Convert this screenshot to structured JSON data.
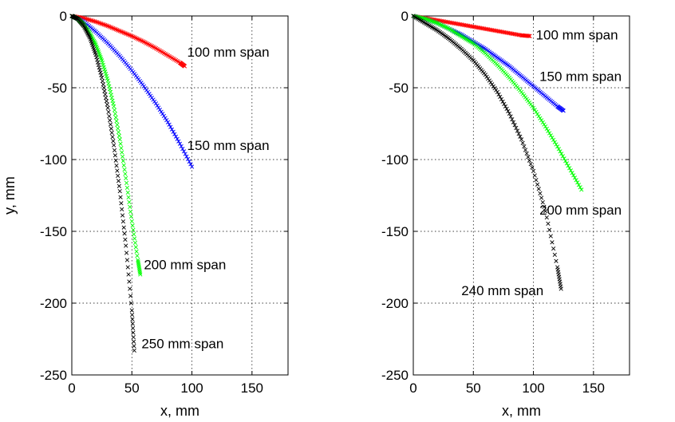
{
  "chart_data": [
    {
      "type": "scatter",
      "title": "",
      "xlabel": "x, mm",
      "ylabel": "y, mm",
      "xlim": [
        0,
        180
      ],
      "ylim": [
        -250,
        0
      ],
      "xticks": [
        0,
        50,
        100,
        150
      ],
      "yticks": [
        0,
        -50,
        -100,
        -150,
        -200,
        -250
      ],
      "grid": true,
      "marker": "x",
      "series": [
        {
          "name": "100 mm span",
          "color": "#ff0000",
          "x": [
            0,
            10,
            20,
            30,
            40,
            50,
            60,
            70,
            80,
            90,
            94
          ],
          "y": [
            0,
            -1.5,
            -4,
            -7,
            -10.5,
            -14,
            -18,
            -22.5,
            -27.5,
            -32.5,
            -35
          ]
        },
        {
          "name": "150 mm span",
          "color": "#0000ff",
          "x": [
            0,
            10,
            20,
            30,
            40,
            50,
            60,
            70,
            80,
            90,
            100
          ],
          "y": [
            0,
            -4,
            -11,
            -19,
            -28,
            -38,
            -49,
            -61,
            -74,
            -89,
            -105
          ]
        },
        {
          "name": "200 mm span",
          "color": "#00ff00",
          "x": [
            0,
            5,
            10,
            15,
            20,
            25,
            30,
            35,
            40,
            45,
            50,
            55,
            57
          ],
          "y": [
            0,
            -2,
            -6,
            -12,
            -20,
            -31,
            -45,
            -63,
            -86,
            -113,
            -143,
            -170,
            -180
          ]
        },
        {
          "name": "250 mm span",
          "color": "#000000",
          "x": [
            0,
            5,
            10,
            15,
            20,
            25,
            30,
            35,
            40,
            45,
            50,
            52
          ],
          "y": [
            0,
            -2,
            -7,
            -15,
            -27,
            -43,
            -64,
            -90,
            -122,
            -160,
            -205,
            -233
          ]
        }
      ],
      "annotations": [
        {
          "text": "100 mm span",
          "x": 96,
          "y": -25
        },
        {
          "text": "150 mm span",
          "x": 96,
          "y": -90
        },
        {
          "text": "200 mm span",
          "x": 60,
          "y": -173
        },
        {
          "text": "250 mm span",
          "x": 58,
          "y": -228
        }
      ]
    },
    {
      "type": "scatter",
      "title": "",
      "xlabel": "x, mm",
      "ylabel": "",
      "xlim": [
        0,
        180
      ],
      "ylim": [
        -250,
        0
      ],
      "xticks": [
        0,
        50,
        100,
        150
      ],
      "yticks": [
        0,
        -50,
        -100,
        -150,
        -200,
        -250
      ],
      "grid": true,
      "marker": "x",
      "series": [
        {
          "name": "100 mm span",
          "color": "#ff0000",
          "x": [
            0,
            10,
            20,
            30,
            40,
            50,
            60,
            70,
            80,
            90,
            97
          ],
          "y": [
            0,
            -1.5,
            -3,
            -4.5,
            -6,
            -7.5,
            -9,
            -10.5,
            -12,
            -13.5,
            -14
          ]
        },
        {
          "name": "150 mm span",
          "color": "#0000ff",
          "x": [
            0,
            10,
            20,
            30,
            40,
            50,
            60,
            70,
            80,
            90,
            100,
            110,
            120,
            125
          ],
          "y": [
            0,
            -2,
            -5,
            -9,
            -13,
            -18,
            -23,
            -29,
            -35,
            -42,
            -49,
            -56,
            -63,
            -66
          ]
        },
        {
          "name": "200 mm span",
          "color": "#00ff00",
          "x": [
            0,
            10,
            20,
            30,
            40,
            50,
            60,
            70,
            80,
            90,
            100,
            110,
            120,
            130,
            140
          ],
          "y": [
            0,
            -2,
            -5,
            -9,
            -14,
            -19,
            -26,
            -34,
            -43,
            -53,
            -64,
            -77,
            -91,
            -106,
            -121
          ]
        },
        {
          "name": "240 mm span",
          "color": "#000000",
          "x": [
            0,
            10,
            20,
            30,
            40,
            50,
            60,
            70,
            80,
            90,
            100,
            110,
            120,
            123
          ],
          "y": [
            0,
            -5,
            -10,
            -16,
            -23,
            -31,
            -41,
            -53,
            -68,
            -86,
            -108,
            -136,
            -175,
            -190
          ]
        }
      ],
      "annotations": [
        {
          "text": "100 mm span",
          "x": 102,
          "y": -13
        },
        {
          "text": "150 mm span",
          "x": 105,
          "y": -42
        },
        {
          "text": "200 mm span",
          "x": 105,
          "y": -135
        },
        {
          "text": "240 mm span",
          "x": 40,
          "y": -191
        }
      ]
    }
  ]
}
